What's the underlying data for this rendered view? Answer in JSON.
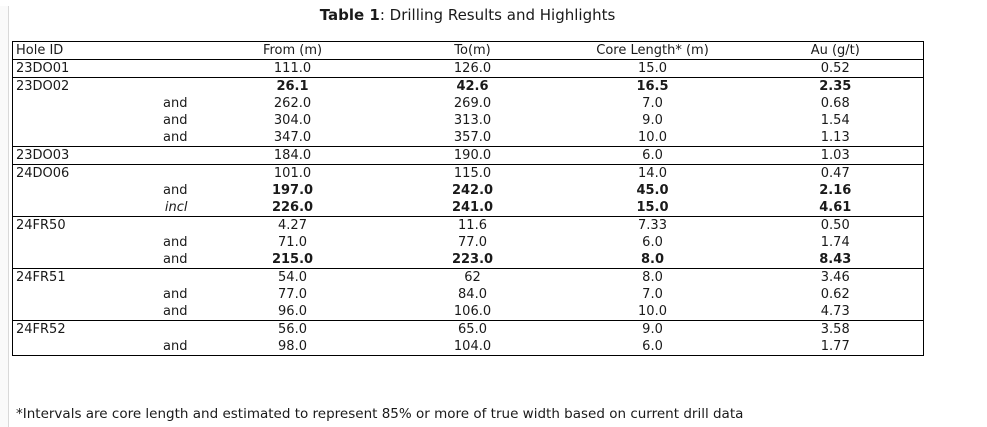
{
  "title": {
    "prefix": "Table 1",
    "rest": ": Drilling Results and Highlights"
  },
  "table": {
    "headers": {
      "hole_id": "Hole ID",
      "from": "From (m)",
      "to": "To(m)",
      "core_length": "Core Length* (m)",
      "au": "Au (g/t)"
    },
    "rows": [
      {
        "hole": "23DO01",
        "qualifier": "",
        "from": "111.0",
        "to": "126.0",
        "core": "15.0",
        "au": "0.52",
        "bold": false,
        "italic_qualifier": false,
        "group_start": true
      },
      {
        "hole": "23DO02",
        "qualifier": "",
        "from": "26.1",
        "to": "42.6",
        "core": "16.5",
        "au": "2.35",
        "bold": true,
        "italic_qualifier": false,
        "group_start": true
      },
      {
        "hole": "",
        "qualifier": "and",
        "from": "262.0",
        "to": "269.0",
        "core": "7.0",
        "au": "0.68",
        "bold": false,
        "italic_qualifier": false,
        "group_start": false
      },
      {
        "hole": "",
        "qualifier": "and",
        "from": "304.0",
        "to": "313.0",
        "core": "9.0",
        "au": "1.54",
        "bold": false,
        "italic_qualifier": false,
        "group_start": false
      },
      {
        "hole": "",
        "qualifier": "and",
        "from": "347.0",
        "to": "357.0",
        "core": "10.0",
        "au": "1.13",
        "bold": false,
        "italic_qualifier": false,
        "group_start": false
      },
      {
        "hole": "23DO03",
        "qualifier": "",
        "from": "184.0",
        "to": "190.0",
        "core": "6.0",
        "au": "1.03",
        "bold": false,
        "italic_qualifier": false,
        "group_start": true
      },
      {
        "hole": "24DO06",
        "qualifier": "",
        "from": "101.0",
        "to": "115.0",
        "core": "14.0",
        "au": "0.47",
        "bold": false,
        "italic_qualifier": false,
        "group_start": true
      },
      {
        "hole": "",
        "qualifier": "and",
        "from": "197.0",
        "to": "242.0",
        "core": "45.0",
        "au": "2.16",
        "bold": true,
        "italic_qualifier": false,
        "group_start": false
      },
      {
        "hole": "",
        "qualifier": "incl",
        "from": "226.0",
        "to": "241.0",
        "core": "15.0",
        "au": "4.61",
        "bold": true,
        "italic_qualifier": true,
        "group_start": false
      },
      {
        "hole": "24FR50",
        "qualifier": "",
        "from": "4.27",
        "to": "11.6",
        "core": "7.33",
        "au": "0.50",
        "bold": false,
        "italic_qualifier": false,
        "group_start": true
      },
      {
        "hole": "",
        "qualifier": "and",
        "from": "71.0",
        "to": "77.0",
        "core": "6.0",
        "au": "1.74",
        "bold": false,
        "italic_qualifier": false,
        "group_start": false
      },
      {
        "hole": "",
        "qualifier": "and",
        "from": "215.0",
        "to": "223.0",
        "core": "8.0",
        "au": "8.43",
        "bold": true,
        "italic_qualifier": false,
        "group_start": false
      },
      {
        "hole": "24FR51",
        "qualifier": "",
        "from": "54.0",
        "to": "62",
        "core": "8.0",
        "au": "3.46",
        "bold": false,
        "italic_qualifier": false,
        "group_start": true
      },
      {
        "hole": "",
        "qualifier": "and",
        "from": "77.0",
        "to": "84.0",
        "core": "7.0",
        "au": "0.62",
        "bold": false,
        "italic_qualifier": false,
        "group_start": false
      },
      {
        "hole": "",
        "qualifier": "and",
        "from": "96.0",
        "to": "106.0",
        "core": "10.0",
        "au": "4.73",
        "bold": false,
        "italic_qualifier": false,
        "group_start": false
      },
      {
        "hole": "24FR52",
        "qualifier": "",
        "from": "56.0",
        "to": "65.0",
        "core": "9.0",
        "au": "3.58",
        "bold": false,
        "italic_qualifier": false,
        "group_start": true
      },
      {
        "hole": "",
        "qualifier": "and",
        "from": "98.0",
        "to": "104.0",
        "core": "6.0",
        "au": "1.77",
        "bold": false,
        "italic_qualifier": false,
        "group_start": false
      }
    ]
  },
  "footnote": "*Intervals are core length and estimated to represent 85% or more of true width based on current drill data",
  "colors": {
    "table_border": "#000000",
    "text": "#1a1a1a",
    "gutter_line": "#d9d9d9"
  }
}
